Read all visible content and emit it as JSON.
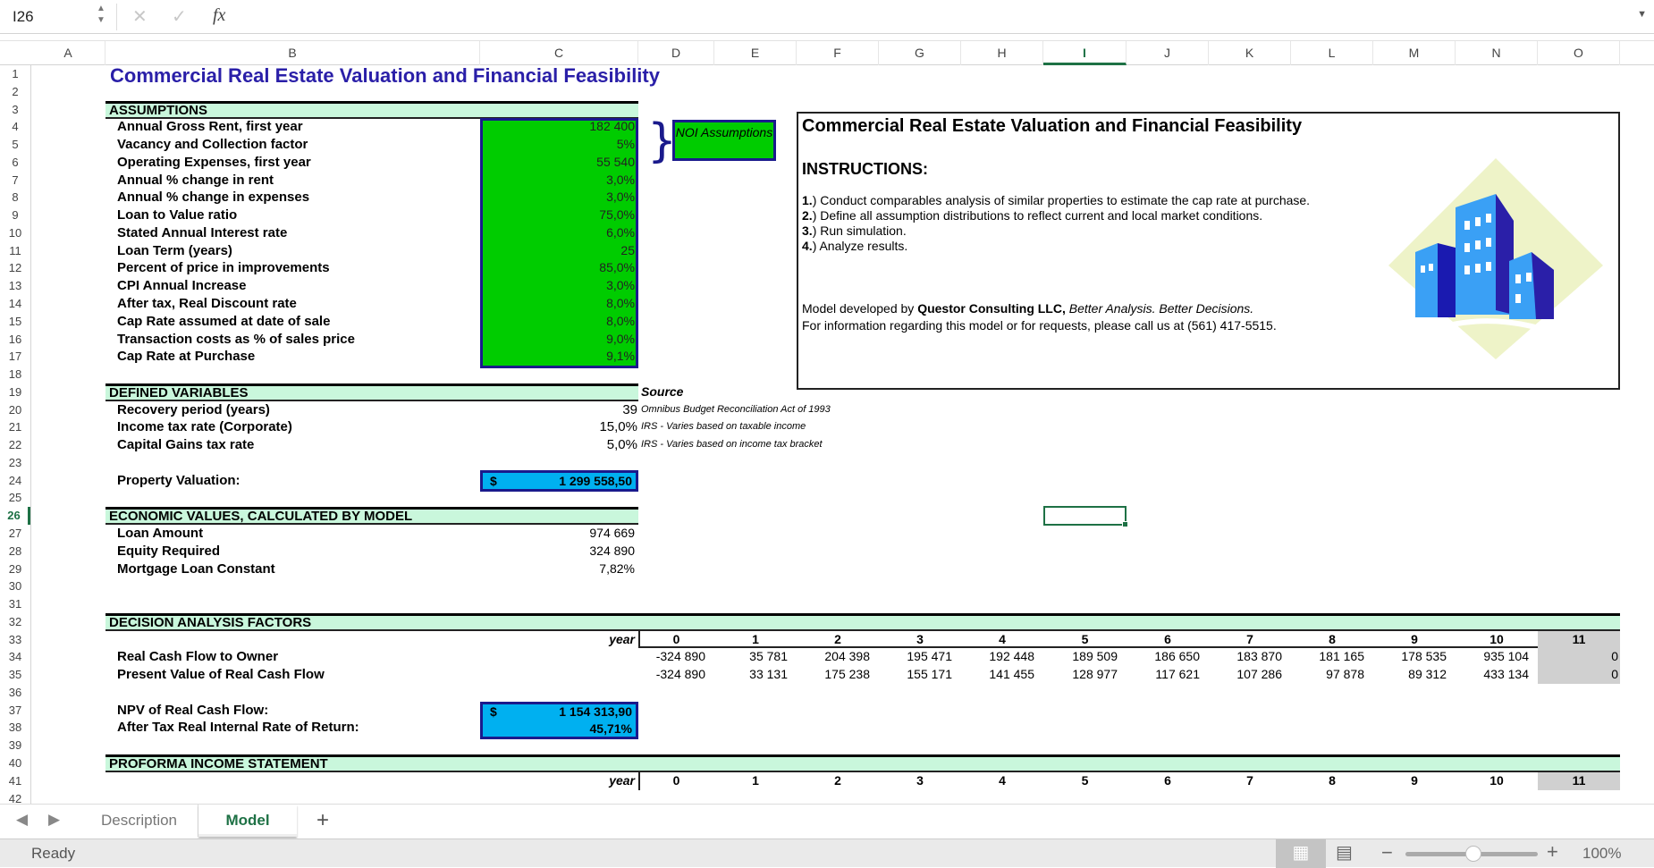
{
  "formula_bar": {
    "name_box": "I26",
    "cancel_icon": "x-icon",
    "enter_icon": "check-icon",
    "fx_label": "fx",
    "formula": ""
  },
  "columns": [
    "A",
    "B",
    "C",
    "D",
    "E",
    "F",
    "G",
    "H",
    "I",
    "J",
    "K",
    "L",
    "M",
    "N",
    "O"
  ],
  "selected_column": "I",
  "selected_row": 26,
  "title": "Commercial Real Estate Valuation and Financial Feasibility",
  "assumptions": {
    "header": "ASSUMPTIONS",
    "rows": [
      {
        "label": "Annual Gross Rent, first year",
        "value": "182 400"
      },
      {
        "label": "Vacancy and Collection factor",
        "value": "5%"
      },
      {
        "label": "Operating Expenses, first year",
        "value": "55 540"
      },
      {
        "label": "Annual % change in rent",
        "value": "3,0%"
      },
      {
        "label": "Annual % change in expenses",
        "value": "3,0%"
      },
      {
        "label": "Loan to Value ratio",
        "value": "75,0%"
      },
      {
        "label": "Stated Annual Interest rate",
        "value": "6,0%"
      },
      {
        "label": "Loan Term (years)",
        "value": "25"
      },
      {
        "label": "Percent of price in improvements",
        "value": "85,0%"
      },
      {
        "label": "CPI Annual Increase",
        "value": "3,0%"
      },
      {
        "label": "After tax, Real Discount rate",
        "value": "8,0%"
      },
      {
        "label": "Cap Rate assumed at date of sale",
        "value": "8,0%"
      },
      {
        "label": "Transaction costs as % of sales price",
        "value": "9,0%"
      },
      {
        "label": "Cap Rate at Purchase",
        "value": "9,1%"
      }
    ],
    "noi_note": "NOI Assumptions"
  },
  "defined_variables": {
    "header": "DEFINED VARIABLES",
    "source_header": "Source",
    "rows": [
      {
        "label": "Recovery period (years)",
        "value": "39",
        "source": "Omnibus Budget Reconciliation Act of 1993"
      },
      {
        "label": "Income tax rate (Corporate)",
        "value": "15,0%",
        "source": "IRS - Varies based on taxable income"
      },
      {
        "label": "Capital Gains tax rate",
        "value": "5,0%",
        "source": "IRS - Varies based on income tax bracket"
      }
    ]
  },
  "property_valuation": {
    "label": "Property Valuation:",
    "currency": "$",
    "value": "1 299 558,50"
  },
  "economic_values": {
    "header": "ECONOMIC VALUES, CALCULATED BY MODEL",
    "rows": [
      {
        "label": "Loan Amount",
        "value": "974 669"
      },
      {
        "label": "Equity Required",
        "value": "324 890"
      },
      {
        "label": "Mortgage Loan Constant",
        "value": "7,82%"
      }
    ]
  },
  "decision_analysis": {
    "header": "DECISION ANALYSIS FACTORS",
    "year_label": "year",
    "years": [
      "0",
      "1",
      "2",
      "3",
      "4",
      "5",
      "6",
      "7",
      "8",
      "9",
      "10",
      "11"
    ],
    "rows": [
      {
        "label": "Real Cash Flow to Owner",
        "values": [
          "-324 890",
          "35 781",
          "204 398",
          "195 471",
          "192 448",
          "189 509",
          "186 650",
          "183 870",
          "181 165",
          "178 535",
          "935 104",
          "0"
        ]
      },
      {
        "label": "Present Value of Real Cash Flow",
        "values": [
          "-324 890",
          "33 131",
          "175 238",
          "155 171",
          "141 455",
          "128 977",
          "117 621",
          "107 286",
          "97 878",
          "89 312",
          "433 134",
          "0"
        ]
      }
    ]
  },
  "npv": {
    "label": "NPV of Real Cash Flow:",
    "currency": "$",
    "value": "1 154 313,90"
  },
  "irr": {
    "label": "After Tax Real Internal Rate of Return:",
    "value": "45,71%"
  },
  "proforma": {
    "header": "PROFORMA INCOME STATEMENT",
    "year_label": "year"
  },
  "instructions": {
    "title": "Commercial Real Estate Valuation and Financial Feasibility",
    "heading": "INSTRUCTIONS:",
    "steps": [
      {
        "num": "1.",
        "text": ") Conduct comparables analysis of similar properties to estimate the cap rate at purchase."
      },
      {
        "num": "2.",
        "text": ") Define all assumption distributions to reflect current and local market conditions."
      },
      {
        "num": "3.",
        "text": ") Run simulation."
      },
      {
        "num": "4.",
        "text": ") Analyze results."
      }
    ],
    "credit_prefix": "Model developed by ",
    "credit_company": "Questor Consulting LLC,",
    "credit_tagline": " Better Analysis. Better Decisions.",
    "contact": "For information regarding this model or for requests, please call us at (561) 417-5515."
  },
  "sheet_tabs": [
    {
      "label": "Description",
      "active": false
    },
    {
      "label": "Model",
      "active": true
    }
  ],
  "add_sheet": "+",
  "status": {
    "text": "Ready",
    "zoom": "100%",
    "zoom_level_percent": 100
  },
  "colors": {
    "title": "#2a1fa8",
    "section_bg": "#c9f7dc",
    "input_green": "#00cc00",
    "output_blue": "#00b0f0",
    "box_border": "#1a1a8c",
    "excel_green": "#1e7145"
  }
}
